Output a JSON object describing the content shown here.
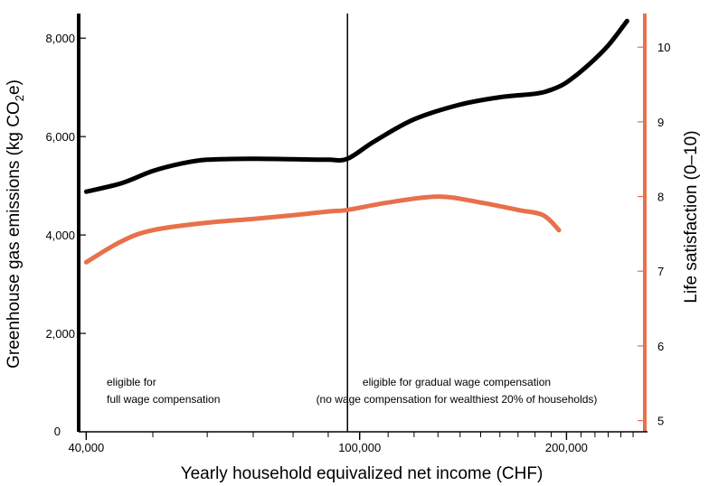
{
  "chart_data": {
    "type": "line",
    "title": "",
    "xlabel": "Yearly household equivalized net income (CHF)",
    "ylabel_left": {
      "main": "Greenhouse gas emissions (kg CO",
      "sub": "2",
      "end": "e)"
    },
    "ylabel_right": "Life satisfaction (0–10)",
    "x_scale": "log",
    "xlim": [
      39000,
      260000
    ],
    "ylim_left": [
      0,
      8500
    ],
    "ylim_right": [
      4.85,
      10.45
    ],
    "x_ticks": [
      40000,
      100000,
      200000
    ],
    "x_tick_labels": [
      "40,000",
      "100,000",
      "200,000"
    ],
    "y_left_ticks": [
      0,
      2000,
      4000,
      6000,
      8000
    ],
    "y_left_tick_labels": [
      "0",
      "2,000",
      "4,000",
      "6,000",
      "8,000"
    ],
    "y_right_ticks": [
      5,
      6,
      7,
      8,
      9,
      10
    ],
    "y_right_tick_labels": [
      "5",
      "6",
      "7",
      "8",
      "9",
      "10"
    ],
    "vertical_line_x": 96000,
    "annotations": [
      {
        "lines": [
          "eligible for",
          "full wage compensation"
        ]
      },
      {
        "lines": [
          "eligible for gradual wage compensation",
          "(no wage compensation for wealthiest 20% of households)"
        ]
      }
    ],
    "series": [
      {
        "axis": "left",
        "color": "#000000",
        "x": [
          40000,
          45000,
          50000,
          55000,
          60000,
          70000,
          80000,
          90000,
          96000,
          105000,
          120000,
          140000,
          160000,
          180000,
          190000,
          200000,
          215000,
          230000,
          245000
        ],
        "values": [
          4880,
          5050,
          5300,
          5450,
          5530,
          5550,
          5540,
          5530,
          5550,
          5900,
          6350,
          6650,
          6800,
          6870,
          6950,
          7100,
          7450,
          7850,
          8350
        ]
      },
      {
        "axis": "right",
        "color": "#e8704a",
        "x": [
          40000,
          45000,
          50000,
          60000,
          70000,
          80000,
          90000,
          96000,
          110000,
          130000,
          150000,
          170000,
          185000,
          195000
        ],
        "values": [
          7.12,
          7.4,
          7.55,
          7.65,
          7.7,
          7.75,
          7.8,
          7.82,
          7.92,
          8.0,
          7.92,
          7.82,
          7.75,
          7.55
        ]
      }
    ]
  }
}
